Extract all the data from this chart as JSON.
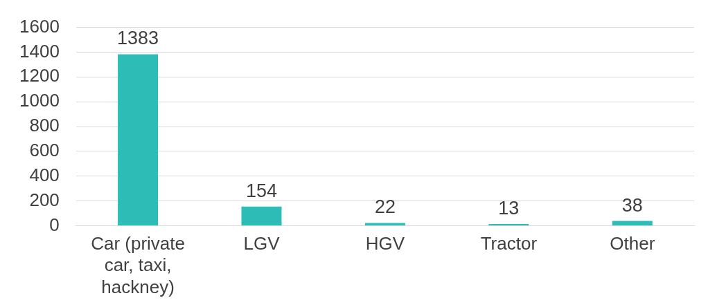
{
  "chart_data": {
    "type": "bar",
    "categories": [
      "Car (private car, taxi, hackney)",
      "LGV",
      "HGV",
      "Tractor",
      "Other"
    ],
    "values": [
      1383,
      154,
      22,
      13,
      38
    ],
    "color": "#2ebdb6",
    "ylim": [
      0,
      1600
    ],
    "yticks": [
      0,
      200,
      400,
      600,
      800,
      1000,
      1200,
      1400,
      1600
    ],
    "grid": "y",
    "data_labels": true,
    "legend": false
  }
}
